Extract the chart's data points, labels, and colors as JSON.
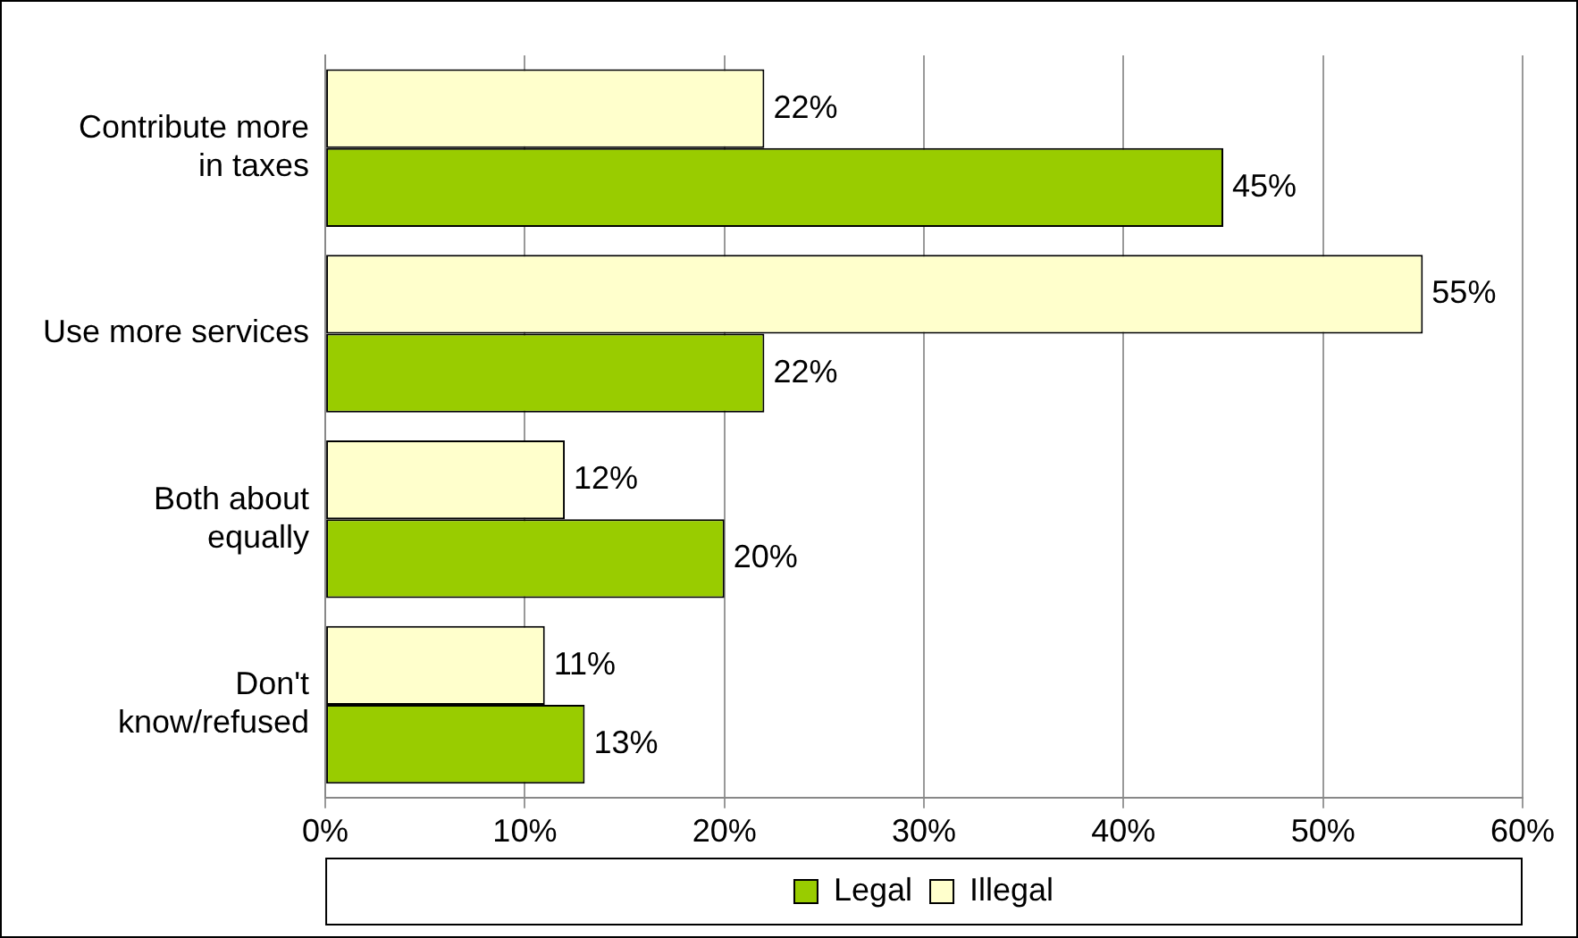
{
  "chart_data": {
    "type": "bar",
    "orientation": "horizontal",
    "categories": [
      "Contribute more\nin taxes",
      "Use more services",
      "Both about\nequally",
      "Don't\nknow/refused"
    ],
    "series": [
      {
        "name": "Illegal",
        "color": "#ffffcc",
        "values": [
          22,
          55,
          12,
          11
        ],
        "value_labels": [
          "22%",
          "55%",
          "12%",
          "11%"
        ]
      },
      {
        "name": "Legal",
        "color": "#99cc00",
        "values": [
          45,
          22,
          20,
          13
        ],
        "value_labels": [
          "45%",
          "22%",
          "20%",
          "13%"
        ]
      }
    ],
    "xlim": [
      0,
      60
    ],
    "xticks": [
      {
        "value": 0,
        "label": "0%"
      },
      {
        "value": 10,
        "label": "10%"
      },
      {
        "value": 20,
        "label": "20%"
      },
      {
        "value": 30,
        "label": "30%"
      },
      {
        "value": 40,
        "label": "40%"
      },
      {
        "value": 50,
        "label": "50%"
      },
      {
        "value": 60,
        "label": "60%"
      }
    ],
    "grid": "x",
    "legend": "bottom"
  }
}
